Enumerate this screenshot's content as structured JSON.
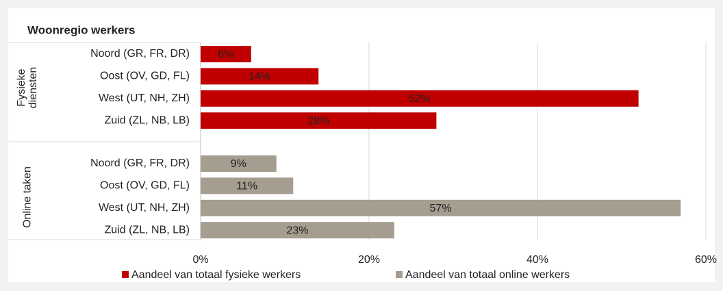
{
  "chart_data": {
    "type": "bar",
    "orientation": "horizontal",
    "title": "Woonregio werkers",
    "series": [
      {
        "name": "Aandeel van totaal fysieke werkers",
        "color": "#c00000",
        "group": "Fysieke diensten",
        "categories": [
          "Noord (GR, FR, DR)",
          "Oost (OV, GD, FL)",
          "West (UT, NH, ZH)",
          "Zuid (ZL, NB, LB)"
        ],
        "values": [
          6,
          14,
          52,
          28
        ],
        "value_labels": [
          "6%",
          "14%",
          "52%",
          "28%"
        ]
      },
      {
        "name": "Aandeel van totaal online werkers",
        "color": "#a59d8f",
        "group": "Online taken",
        "categories": [
          "Noord (GR, FR, DR)",
          "Oost (OV, GD, FL)",
          "West (UT, NH, ZH)",
          "Zuid (ZL, NB, LB)"
        ],
        "values": [
          9,
          11,
          57,
          23
        ],
        "value_labels": [
          "9%",
          "11%",
          "57%",
          "23%"
        ]
      }
    ],
    "xlim": [
      0,
      60
    ],
    "xticks": [
      {
        "value": 0,
        "label": "0%"
      },
      {
        "value": 20,
        "label": "20%"
      },
      {
        "value": 40,
        "label": "40%"
      },
      {
        "value": 60,
        "label": "60%"
      }
    ],
    "grid": true,
    "legend": "bottom"
  }
}
